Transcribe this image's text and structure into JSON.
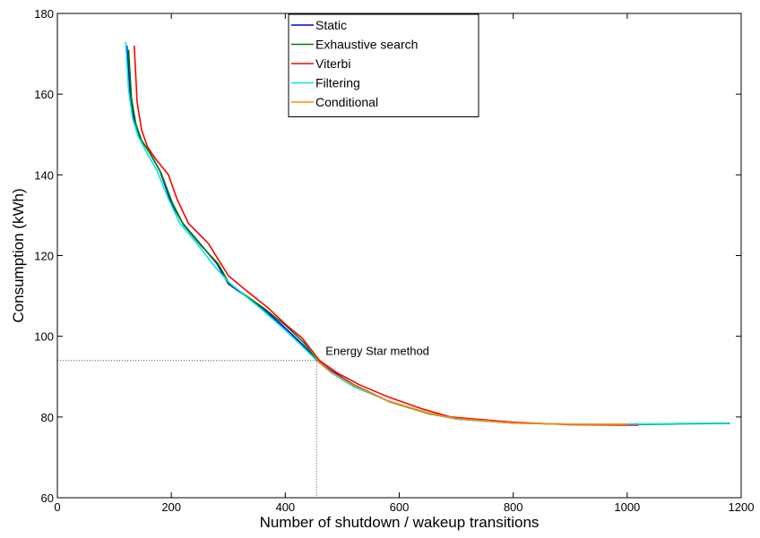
{
  "chart_data": {
    "type": "line",
    "title": "",
    "xlabel": "Number of shutdown / wakeup transitions",
    "ylabel": "Consumption (kWh)",
    "xlim": [
      0,
      1200
    ],
    "ylim": [
      60,
      180
    ],
    "xticks": [
      0,
      200,
      400,
      600,
      800,
      1000,
      1200
    ],
    "yticks": [
      60,
      80,
      100,
      120,
      140,
      160,
      180
    ],
    "grid": false,
    "legend_position": "top-center",
    "series": [
      {
        "name": "Static",
        "color": "#0000cc",
        "x": [
          122,
          128,
          135,
          145,
          160,
          180,
          200,
          220,
          250,
          280,
          300,
          330,
          360,
          400,
          430,
          455,
          480,
          520,
          580,
          650,
          700,
          800,
          900,
          1000,
          1020
        ],
        "y": [
          172,
          160,
          153,
          149,
          146,
          141,
          133,
          128,
          123,
          118,
          113,
          110,
          107,
          102,
          98,
          94,
          91.5,
          88,
          84,
          81,
          79.5,
          78.5,
          78.2,
          78.2,
          78.3
        ]
      },
      {
        "name": "Exhaustive search",
        "color": "#008000",
        "x": [
          125,
          130,
          138,
          148,
          162,
          182,
          202,
          222,
          252,
          282,
          302,
          332,
          362,
          402,
          432,
          456,
          482,
          522,
          582,
          652,
          702,
          802,
          902,
          1002,
          1100,
          1180
        ],
        "y": [
          171,
          159,
          152.5,
          148.5,
          145.5,
          140.5,
          133,
          127.5,
          122.5,
          118,
          113,
          110,
          107,
          102.5,
          98.5,
          94,
          91,
          87.8,
          83.8,
          80.8,
          79.5,
          78.5,
          78.2,
          78.1,
          78.3,
          78.4
        ]
      },
      {
        "name": "Viterbi",
        "color": "#ff0000",
        "x": [
          135,
          140,
          148,
          158,
          172,
          195,
          210,
          230,
          265,
          300,
          330,
          370,
          400,
          430,
          460,
          490,
          530,
          580,
          640,
          690,
          800,
          900,
          1000,
          1020
        ],
        "y": [
          172,
          158,
          151,
          147,
          144,
          140,
          134,
          128,
          123,
          115,
          111.5,
          107,
          103,
          99.5,
          94,
          91,
          88,
          85,
          82,
          80,
          78.7,
          78.1,
          78.0,
          78.0
        ]
      },
      {
        "name": "Filtering",
        "color": "#00e5ee",
        "x": [
          120,
          125,
          132,
          142,
          155,
          175,
          195,
          215,
          245,
          275,
          300,
          330,
          360,
          400,
          430,
          455,
          480,
          520,
          580,
          650,
          700,
          800,
          900,
          1000,
          1100,
          1178
        ],
        "y": [
          173,
          161,
          154,
          149.5,
          146,
          141,
          134,
          128,
          123,
          117.5,
          113.5,
          110,
          106.5,
          101.5,
          97.5,
          94,
          91,
          87.5,
          84,
          81,
          79.5,
          78.5,
          78.2,
          78.2,
          78.4,
          78.5
        ]
      },
      {
        "name": "Conditional",
        "color": "#ff8c00",
        "x": [
          455,
          480,
          520,
          580,
          650,
          700,
          800,
          900,
          1000
        ],
        "y": [
          94,
          91.2,
          87.8,
          84,
          81,
          79.6,
          78.5,
          78.2,
          78.2
        ]
      }
    ],
    "annotations": [
      {
        "text": "Energy Star method",
        "x": 455,
        "y": 94
      }
    ]
  }
}
